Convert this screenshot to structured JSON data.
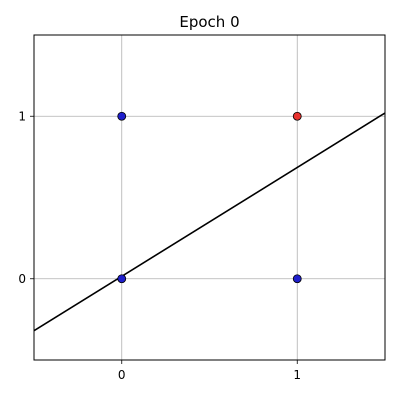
{
  "chart_data": {
    "type": "scatter",
    "title": "Epoch 0",
    "xlabel": "",
    "ylabel": "",
    "xlim": [
      -0.5,
      1.5
    ],
    "ylim": [
      -0.5,
      1.5
    ],
    "xticks": [
      0,
      1
    ],
    "yticks": [
      0,
      1
    ],
    "xtick_labels": [
      "0",
      "1"
    ],
    "ytick_labels": [
      "0",
      "1"
    ],
    "grid": true,
    "points": [
      {
        "x": 0,
        "y": 0,
        "color": "#1f1fcc"
      },
      {
        "x": 0,
        "y": 1,
        "color": "#1f1fcc"
      },
      {
        "x": 1,
        "y": 0,
        "color": "#1f1fcc"
      },
      {
        "x": 1,
        "y": 1,
        "color": "#e8322e"
      }
    ],
    "decision_line": {
      "x": [
        -0.5,
        1.5
      ],
      "y": [
        -0.32,
        1.02
      ],
      "color": "#000000"
    }
  }
}
